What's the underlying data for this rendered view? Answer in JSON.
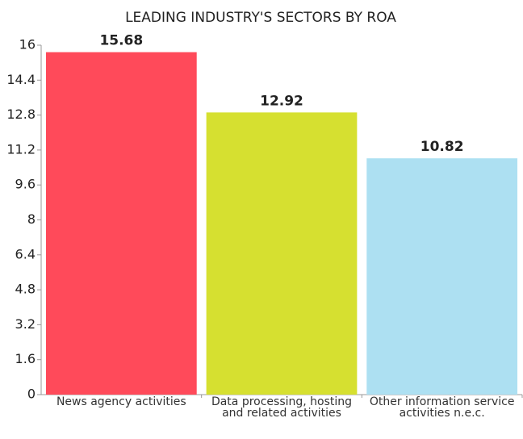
{
  "chart_data": {
    "type": "bar",
    "title": "LEADING INDUSTRY'S SECTORS BY ROA",
    "categories": [
      "News agency activities",
      "Data processing, hosting and related activities",
      "Other information service activities n.e.c."
    ],
    "values": [
      15.68,
      12.92,
      10.82
    ],
    "colors": [
      "#ff4a5a",
      "#d6e030",
      "#ade0f2"
    ],
    "ylim": [
      0,
      16
    ],
    "yticks": [
      0,
      1.6,
      3.2,
      4.8,
      6.4,
      8,
      9.6,
      11.2,
      12.8,
      14.4,
      16
    ],
    "grid": false
  }
}
